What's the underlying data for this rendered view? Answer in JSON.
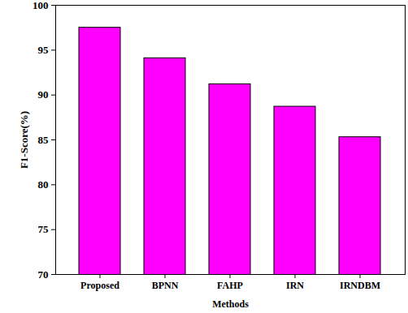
{
  "chart_data": {
    "type": "bar",
    "categories": [
      "Proposed",
      "BPNN",
      "FAHP",
      "IRN",
      "IRNDBM"
    ],
    "values": [
      97.5,
      94.1,
      91.2,
      88.7,
      85.3
    ],
    "color": "#ff00ff",
    "xlabel": "Methods",
    "ylabel": "F1-Score(%)",
    "ylim": [
      70,
      100
    ],
    "yticks": [
      70,
      75,
      80,
      85,
      90,
      95,
      100
    ],
    "grid": false
  }
}
